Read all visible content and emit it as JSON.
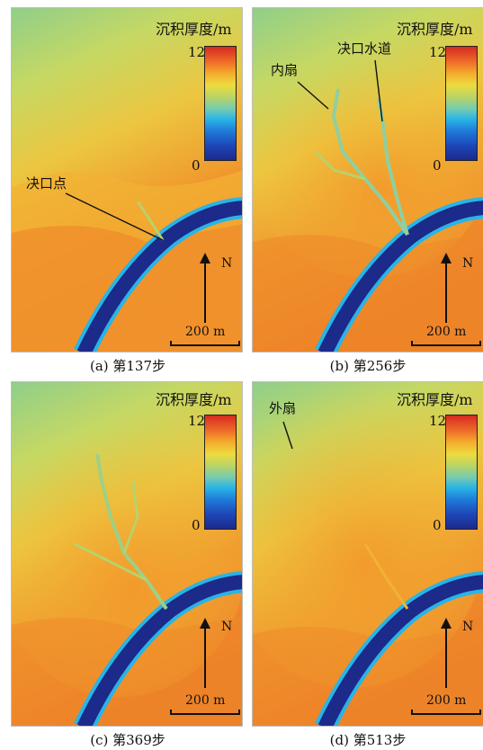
{
  "colorbar": {
    "title": "沉积厚度/m",
    "max": "12",
    "min": "0"
  },
  "north_label": "N",
  "scale_label": "200 m",
  "panels": [
    {
      "caption": "(a) 第137步",
      "annotations": [
        "决口点"
      ]
    },
    {
      "caption": "(b) 第256步",
      "annotations": [
        "内扇",
        "决口水道"
      ]
    },
    {
      "caption": "(c) 第369步",
      "annotations": []
    },
    {
      "caption": "(d) 第513步",
      "annotations": [
        "外扇"
      ]
    }
  ],
  "colors": {
    "deep": "#1c2a8a",
    "channel_edge": "#29b4e6",
    "high": "#d42a22",
    "orange": "#ee7a26",
    "yellow": "#e8d63e",
    "green": "#9fcf86"
  }
}
